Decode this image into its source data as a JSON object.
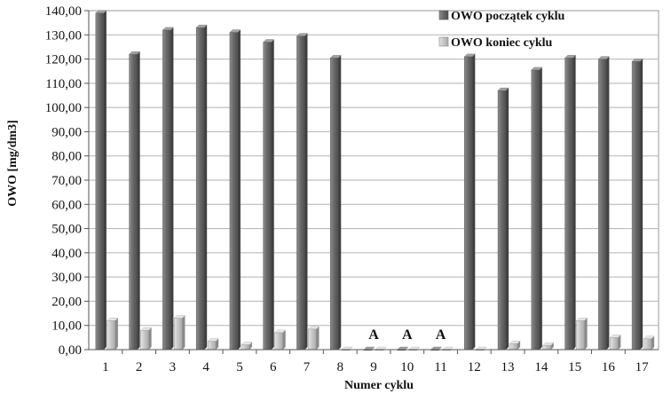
{
  "chart_data": {
    "type": "bar",
    "title": "",
    "xlabel": "Numer cyklu",
    "ylabel": "OWO [mg/dm3]",
    "categories": [
      "1",
      "2",
      "3",
      "4",
      "5",
      "6",
      "7",
      "8",
      "9",
      "10",
      "11",
      "12",
      "13",
      "14",
      "15",
      "16",
      "17"
    ],
    "y_ticks": [
      "0,00",
      "10,00",
      "20,00",
      "30,00",
      "40,00",
      "50,00",
      "60,00",
      "70,00",
      "80,00",
      "90,00",
      "100,00",
      "110,00",
      "120,00",
      "130,00",
      "140,00"
    ],
    "ylim": [
      0,
      140
    ],
    "grid": true,
    "legend_position": "top-right",
    "series": [
      {
        "name": "OWO początek cyklu",
        "color": "#6e6e6e",
        "values": [
          139.0,
          122.0,
          132.0,
          133.0,
          131.0,
          127.0,
          129.5,
          120.5,
          0.0,
          0.0,
          0.0,
          121.0,
          107.0,
          115.5,
          120.5,
          120.0,
          119.0
        ]
      },
      {
        "name": "OWO koniec cyklu",
        "color": "#c9c9c9",
        "values": [
          12.0,
          8.0,
          13.0,
          3.5,
          2.0,
          7.0,
          8.5,
          0.0,
          0.0,
          0.0,
          0.0,
          0.0,
          2.5,
          1.8,
          12.0,
          5.0,
          4.5
        ]
      }
    ],
    "annotations": [
      {
        "category": "9",
        "text": "A"
      },
      {
        "category": "10",
        "text": "A"
      },
      {
        "category": "11",
        "text": "A"
      }
    ]
  }
}
